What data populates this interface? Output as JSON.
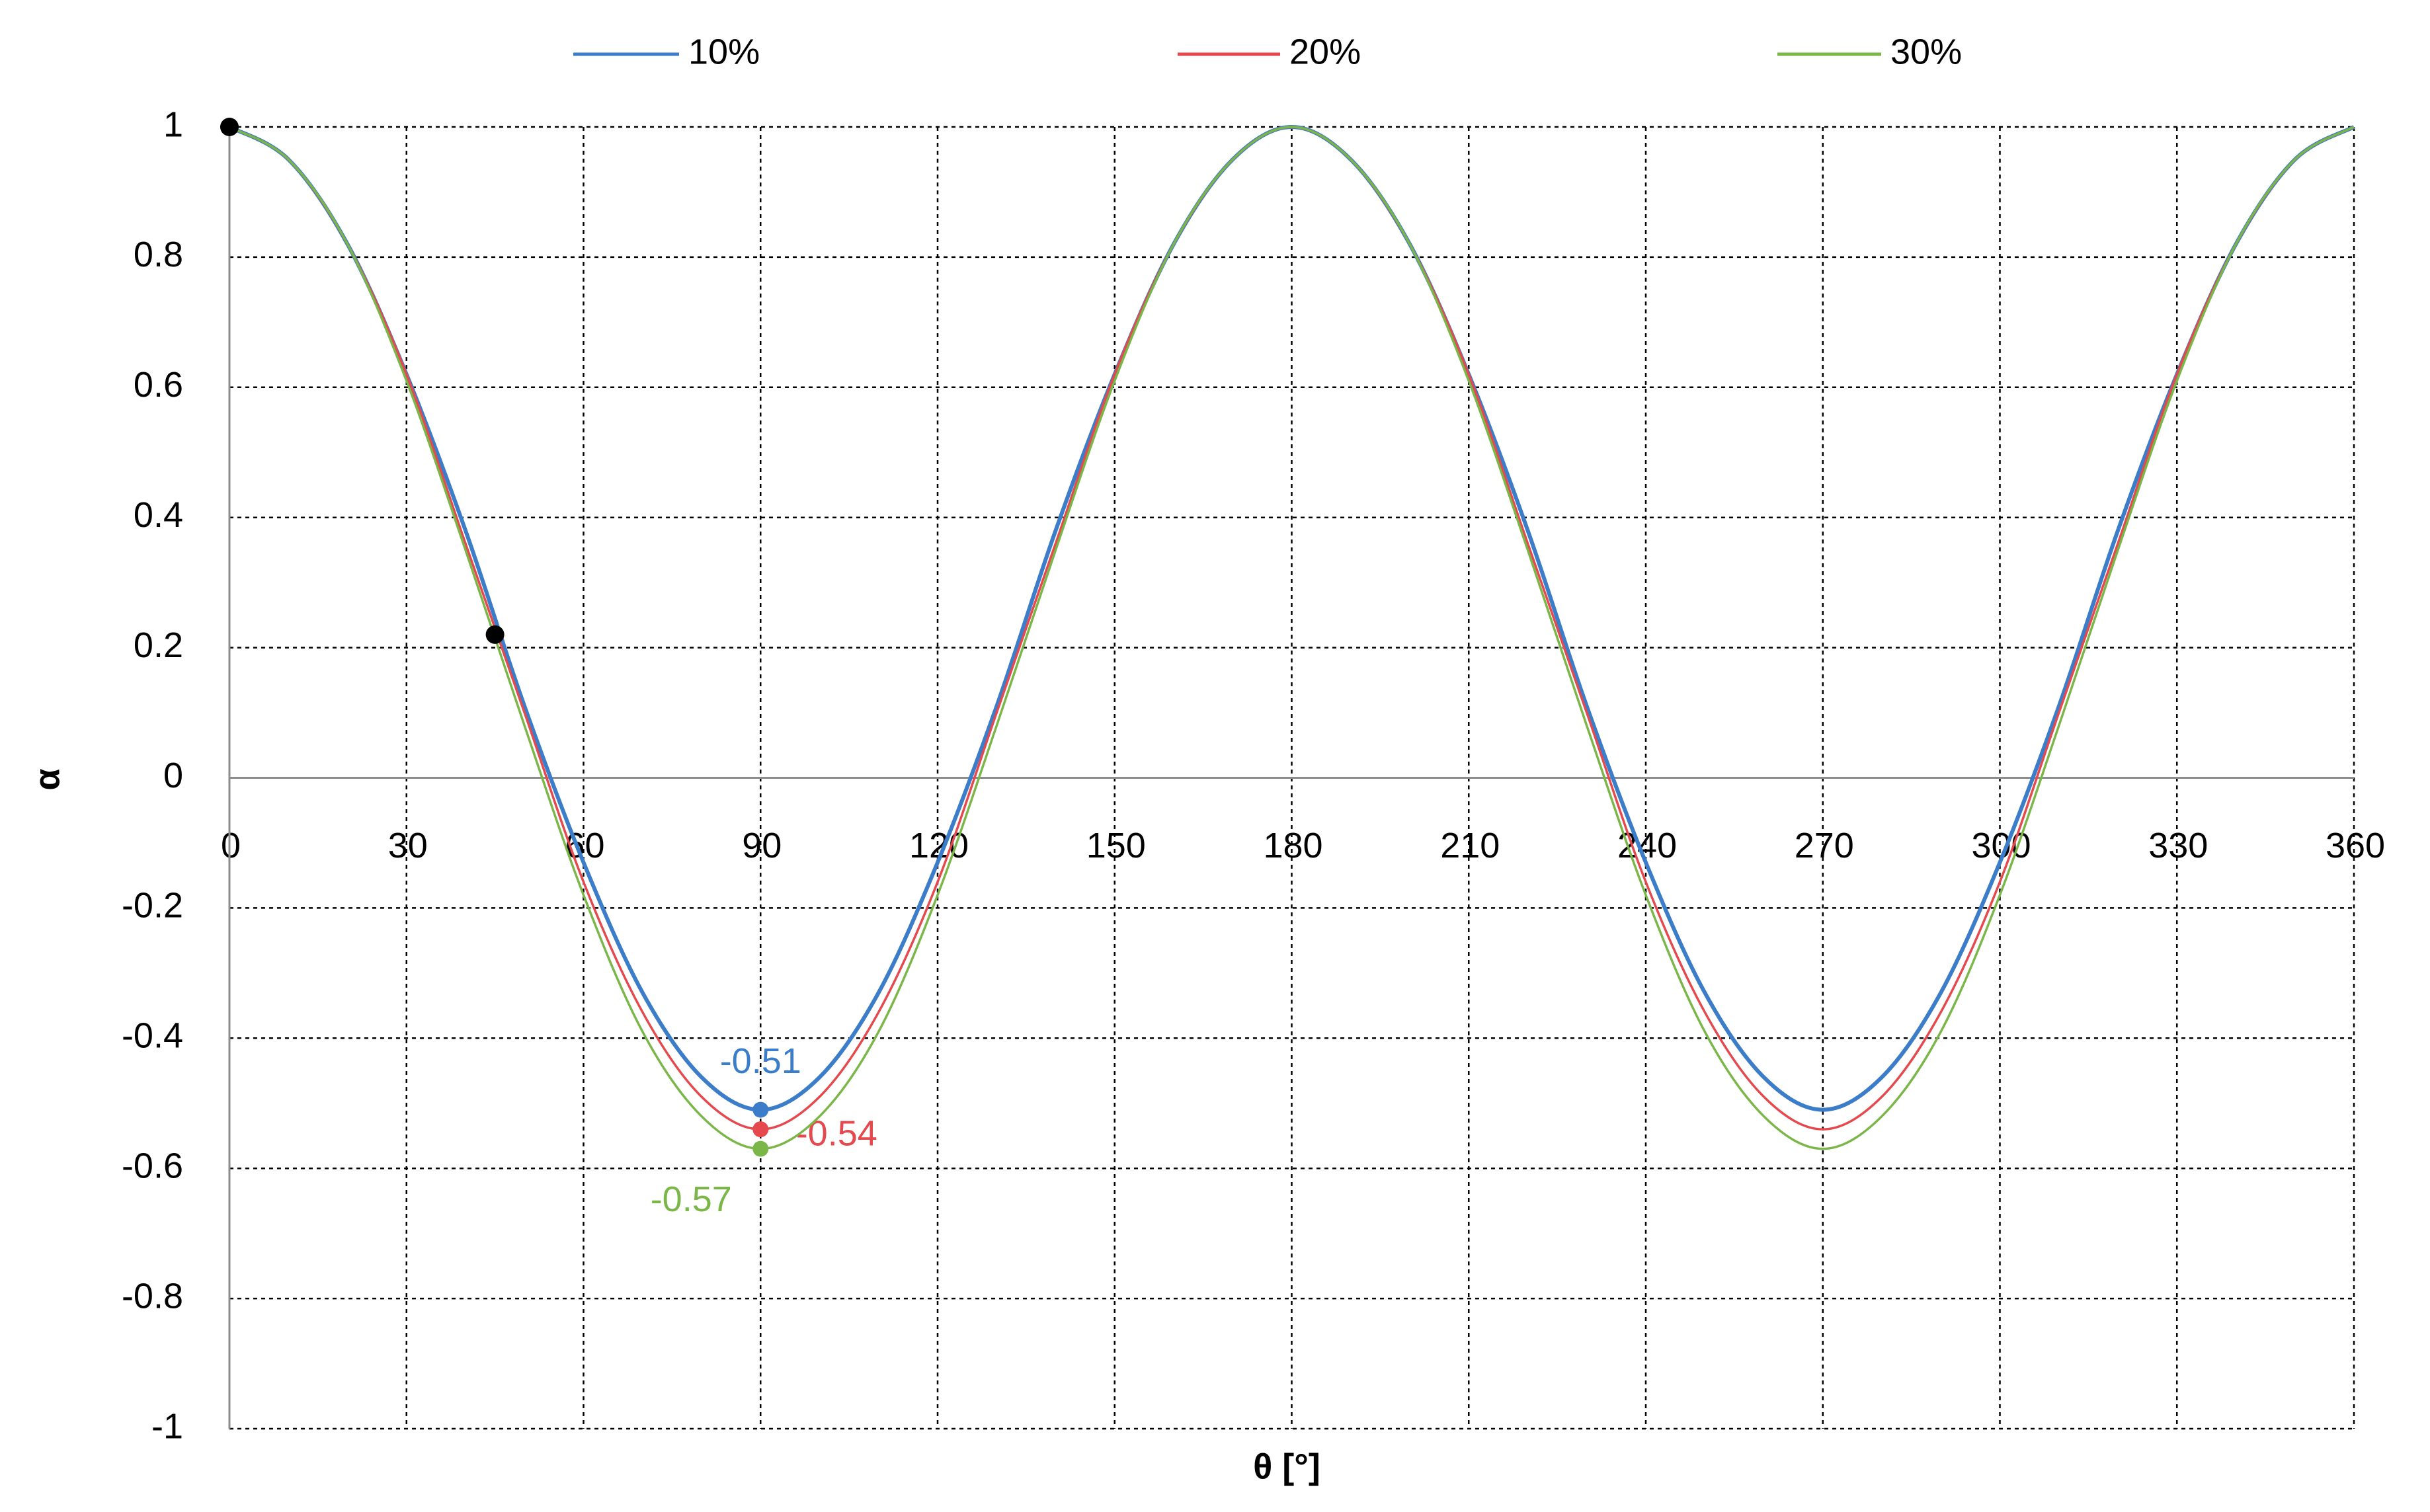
{
  "chart_data": {
    "type": "line",
    "x_label": "θ [°]",
    "y_label": "α",
    "x": [
      0,
      10,
      20,
      30,
      40,
      50,
      60,
      70,
      80,
      90,
      100,
      110,
      120,
      130,
      140,
      150,
      160,
      170,
      180,
      190,
      200,
      210,
      220,
      230,
      240,
      250,
      260,
      270,
      280,
      290,
      300,
      310,
      320,
      330,
      340,
      350,
      360
    ],
    "series": [
      {
        "name": "10%",
        "color": "#3b7dc8",
        "values": [
          1,
          0.95,
          0.82,
          0.62,
          0.38,
          0.11,
          -0.13,
          -0.33,
          -0.46,
          -0.51,
          -0.46,
          -0.33,
          -0.13,
          0.11,
          0.38,
          0.62,
          0.82,
          0.95,
          1,
          0.95,
          0.82,
          0.62,
          0.38,
          0.11,
          -0.13,
          -0.33,
          -0.46,
          -0.51,
          -0.46,
          -0.33,
          -0.13,
          0.11,
          0.38,
          0.62,
          0.82,
          0.95,
          1
        ],
        "value_labels": [
          null,
          null,
          null,
          null,
          null,
          null,
          null,
          null,
          null,
          "-0.51",
          null,
          null,
          null,
          null,
          null,
          null,
          null,
          null,
          null,
          null,
          null,
          null,
          null,
          null,
          null,
          null,
          null,
          null,
          null,
          null,
          null,
          null,
          null,
          null,
          null,
          null,
          null
        ]
      },
      {
        "name": "20%",
        "color": "#e5484d",
        "values": [
          1,
          0.95,
          0.82,
          0.62,
          0.36,
          0.1,
          -0.16,
          -0.36,
          -0.49,
          -0.54,
          -0.49,
          -0.36,
          -0.16,
          0.1,
          0.36,
          0.62,
          0.82,
          0.95,
          1,
          0.95,
          0.82,
          0.62,
          0.36,
          0.1,
          -0.16,
          -0.36,
          -0.49,
          -0.54,
          -0.49,
          -0.36,
          -0.16,
          0.1,
          0.36,
          0.62,
          0.82,
          0.95,
          1
        ],
        "value_labels": [
          null,
          null,
          null,
          null,
          null,
          null,
          null,
          null,
          null,
          "-0.54",
          null,
          null,
          null,
          null,
          null,
          null,
          null,
          null,
          null,
          null,
          null,
          null,
          null,
          null,
          null,
          null,
          null,
          null,
          null,
          null,
          null,
          null,
          null,
          null,
          null,
          null,
          null
        ]
      },
      {
        "name": "30%",
        "color": "#7ab648",
        "values": [
          1,
          0.95,
          0.82,
          0.61,
          0.35,
          0.08,
          -0.18,
          -0.39,
          -0.52,
          -0.57,
          -0.52,
          -0.39,
          -0.18,
          0.08,
          0.35,
          0.61,
          0.82,
          0.95,
          1,
          0.95,
          0.82,
          0.61,
          0.35,
          0.08,
          -0.18,
          -0.39,
          -0.52,
          -0.57,
          -0.52,
          -0.39,
          -0.18,
          0.08,
          0.35,
          0.61,
          0.82,
          0.95,
          1
        ],
        "value_labels": [
          null,
          null,
          null,
          null,
          null,
          null,
          null,
          null,
          null,
          "-0.57",
          null,
          null,
          null,
          null,
          null,
          null,
          null,
          null,
          null,
          null,
          null,
          null,
          null,
          null,
          null,
          null,
          null,
          null,
          null,
          null,
          null,
          null,
          null,
          null,
          null,
          null,
          null
        ]
      }
    ],
    "points": {
      "x": [
        0,
        45
      ],
      "values": [
        1,
        0.22
      ],
      "color": "#000000"
    },
    "xlim": [
      0,
      360
    ],
    "xticks": [
      0,
      30,
      60,
      90,
      120,
      150,
      180,
      210,
      240,
      270,
      300,
      330,
      360
    ],
    "ylim": [
      -1,
      1
    ],
    "yticks": [
      -1,
      -0.8,
      -0.6,
      -0.4,
      -0.2,
      0,
      0.2,
      0.4,
      0.6,
      0.8,
      1
    ],
    "grid": true,
    "legend": "top"
  }
}
